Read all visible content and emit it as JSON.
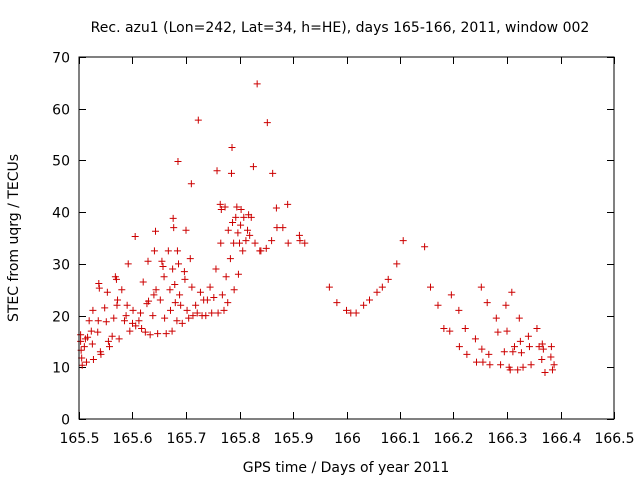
{
  "chart_data": {
    "type": "scatter",
    "title": "Rec. azu1 (Lon=242, Lat=34, h=HE), days 165-166, 2011, window 002",
    "xlabel": "GPS time / Days of year 2011",
    "ylabel": "STEC from uqrg / TECUs",
    "xlim": [
      165.5,
      166.5
    ],
    "ylim": [
      0,
      70
    ],
    "x_ticks": [
      165.5,
      165.6,
      165.7,
      165.8,
      165.9,
      166,
      166.1,
      166.2,
      166.3,
      166.4,
      166.5
    ],
    "x_tick_labels": [
      "165.5",
      "165.6",
      "165.7",
      "165.8",
      "165.9",
      "166",
      "166.1",
      "166.2",
      "166.3",
      "166.4",
      "166.5"
    ],
    "y_ticks": [
      0,
      10,
      20,
      30,
      40,
      50,
      60,
      70
    ],
    "y_tick_labels": [
      "0",
      "10",
      "20",
      "30",
      "40",
      "50",
      "60",
      "70"
    ],
    "grid": false,
    "marker": "+",
    "color": "#cc0000",
    "points": [
      [
        165.503,
        15.0
      ],
      [
        165.503,
        16.3
      ],
      [
        165.504,
        13.3
      ],
      [
        165.505,
        11.8
      ],
      [
        165.506,
        10.4
      ],
      [
        165.51,
        14.0
      ],
      [
        165.512,
        15.5
      ],
      [
        165.514,
        11.0
      ],
      [
        165.516,
        15.8
      ],
      [
        165.519,
        19.0
      ],
      [
        165.523,
        17.0
      ],
      [
        165.525,
        14.5
      ],
      [
        165.526,
        21.0
      ],
      [
        165.527,
        11.5
      ],
      [
        165.535,
        16.8
      ],
      [
        165.536,
        19.0
      ],
      [
        165.537,
        26.2
      ],
      [
        165.538,
        25.3
      ],
      [
        165.54,
        13.0
      ],
      [
        165.541,
        12.5
      ],
      [
        165.548,
        21.5
      ],
      [
        165.551,
        18.8
      ],
      [
        165.553,
        24.5
      ],
      [
        165.555,
        15.0
      ],
      [
        165.557,
        14.0
      ],
      [
        165.562,
        16.0
      ],
      [
        165.565,
        19.5
      ],
      [
        165.568,
        27.5
      ],
      [
        165.57,
        27.0
      ],
      [
        165.571,
        22.0
      ],
      [
        165.572,
        23.0
      ],
      [
        165.575,
        15.5
      ],
      [
        165.58,
        25.0
      ],
      [
        165.585,
        19.0
      ],
      [
        165.588,
        20.0
      ],
      [
        165.59,
        22.0
      ],
      [
        165.592,
        30.0
      ],
      [
        165.595,
        17.0
      ],
      [
        165.6,
        18.5
      ],
      [
        165.601,
        21.0
      ],
      [
        165.605,
        35.3
      ],
      [
        165.606,
        18.0
      ],
      [
        165.612,
        19.0
      ],
      [
        165.615,
        20.5
      ],
      [
        165.617,
        17.5
      ],
      [
        165.62,
        26.5
      ],
      [
        165.624,
        16.8
      ],
      [
        165.627,
        22.3
      ],
      [
        165.629,
        30.5
      ],
      [
        165.63,
        22.8
      ],
      [
        165.633,
        16.3
      ],
      [
        165.638,
        20.0
      ],
      [
        165.64,
        24.0
      ],
      [
        165.641,
        32.5
      ],
      [
        165.643,
        36.3
      ],
      [
        165.644,
        25.0
      ],
      [
        165.647,
        16.5
      ],
      [
        165.652,
        23.0
      ],
      [
        165.655,
        30.5
      ],
      [
        165.657,
        29.5
      ],
      [
        165.659,
        27.5
      ],
      [
        165.66,
        19.5
      ],
      [
        165.663,
        16.5
      ],
      [
        165.667,
        32.5
      ],
      [
        165.67,
        25.0
      ],
      [
        165.671,
        21.0
      ],
      [
        165.674,
        17.0
      ],
      [
        165.675,
        29.0
      ],
      [
        165.676,
        38.8
      ],
      [
        165.677,
        37.0
      ],
      [
        165.679,
        26.0
      ],
      [
        165.68,
        22.5
      ],
      [
        165.683,
        19.0
      ],
      [
        165.684,
        32.5
      ],
      [
        165.685,
        49.8
      ],
      [
        165.686,
        30.0
      ],
      [
        165.688,
        24.0
      ],
      [
        165.69,
        22.0
      ],
      [
        165.693,
        18.5
      ],
      [
        165.697,
        28.5
      ],
      [
        165.698,
        27.0
      ],
      [
        165.7,
        36.5
      ],
      [
        165.702,
        21.0
      ],
      [
        165.705,
        19.5
      ],
      [
        165.708,
        31.0
      ],
      [
        165.71,
        45.5
      ],
      [
        165.711,
        25.5
      ],
      [
        165.713,
        20.0
      ],
      [
        165.718,
        22.0
      ],
      [
        165.721,
        20.5
      ],
      [
        165.723,
        57.8
      ],
      [
        165.727,
        24.5
      ],
      [
        165.73,
        20.0
      ],
      [
        165.733,
        23.0
      ],
      [
        165.737,
        20.0
      ],
      [
        165.74,
        23.0
      ],
      [
        165.745,
        25.5
      ],
      [
        165.748,
        20.5
      ],
      [
        165.752,
        23.5
      ],
      [
        165.756,
        29.0
      ],
      [
        165.758,
        48.0
      ],
      [
        165.76,
        20.5
      ],
      [
        165.764,
        41.5
      ],
      [
        165.765,
        34.0
      ],
      [
        165.766,
        40.5
      ],
      [
        165.768,
        24.0
      ],
      [
        165.771,
        21.0
      ],
      [
        165.773,
        41.0
      ],
      [
        165.775,
        27.5
      ],
      [
        165.778,
        22.5
      ],
      [
        165.779,
        36.5
      ],
      [
        165.783,
        31.0
      ],
      [
        165.785,
        47.5
      ],
      [
        165.786,
        52.5
      ],
      [
        165.787,
        38.0
      ],
      [
        165.789,
        34.0
      ],
      [
        165.79,
        25.0
      ],
      [
        165.793,
        39.0
      ],
      [
        165.795,
        41.0
      ],
      [
        165.797,
        36.0
      ],
      [
        165.798,
        28.0
      ],
      [
        165.8,
        34.0
      ],
      [
        165.802,
        37.5
      ],
      [
        165.803,
        40.5
      ],
      [
        165.806,
        32.5
      ],
      [
        165.808,
        39.0
      ],
      [
        165.812,
        34.5
      ],
      [
        165.815,
        36.5
      ],
      [
        165.817,
        39.5
      ],
      [
        165.819,
        35.5
      ],
      [
        165.822,
        39.0
      ],
      [
        165.826,
        48.8
      ],
      [
        165.829,
        34.0
      ],
      [
        165.833,
        64.8
      ],
      [
        165.838,
        32.5
      ],
      [
        165.84,
        32.5
      ],
      [
        165.85,
        33.0
      ],
      [
        165.852,
        57.3
      ],
      [
        165.86,
        34.5
      ],
      [
        165.862,
        47.5
      ],
      [
        165.869,
        40.8
      ],
      [
        165.87,
        37.0
      ],
      [
        165.881,
        37.0
      ],
      [
        165.89,
        41.5
      ],
      [
        165.891,
        34.0
      ],
      [
        165.912,
        35.5
      ],
      [
        165.913,
        34.5
      ],
      [
        165.922,
        34.0
      ],
      [
        165.968,
        25.5
      ],
      [
        165.982,
        22.5
      ],
      [
        166.0,
        21.0
      ],
      [
        166.008,
        20.5
      ],
      [
        166.018,
        20.5
      ],
      [
        166.032,
        22.0
      ],
      [
        166.043,
        23.0
      ],
      [
        166.057,
        24.5
      ],
      [
        166.067,
        25.5
      ],
      [
        166.078,
        27.0
      ],
      [
        166.094,
        30.0
      ],
      [
        166.106,
        34.5
      ],
      [
        166.146,
        33.3
      ],
      [
        166.157,
        25.5
      ],
      [
        166.171,
        22.0
      ],
      [
        166.182,
        17.5
      ],
      [
        166.193,
        17.0
      ],
      [
        166.196,
        24.0
      ],
      [
        166.21,
        21.0
      ],
      [
        166.211,
        14.0
      ],
      [
        166.222,
        17.5
      ],
      [
        166.225,
        12.5
      ],
      [
        166.241,
        15.5
      ],
      [
        166.243,
        11.0
      ],
      [
        166.252,
        25.5
      ],
      [
        166.253,
        13.5
      ],
      [
        166.255,
        11.0
      ],
      [
        166.263,
        22.5
      ],
      [
        166.266,
        12.5
      ],
      [
        166.268,
        10.5
      ],
      [
        166.28,
        19.5
      ],
      [
        166.283,
        16.8
      ],
      [
        166.288,
        10.5
      ],
      [
        166.295,
        13.0
      ],
      [
        166.298,
        22.0
      ],
      [
        166.3,
        17.0
      ],
      [
        166.304,
        10.0
      ],
      [
        166.306,
        9.5
      ],
      [
        166.309,
        24.5
      ],
      [
        166.311,
        13.0
      ],
      [
        166.314,
        14.0
      ],
      [
        166.32,
        9.5
      ],
      [
        166.323,
        19.5
      ],
      [
        166.325,
        15.0
      ],
      [
        166.327,
        12.8
      ],
      [
        166.33,
        10.0
      ],
      [
        166.34,
        16.0
      ],
      [
        166.342,
        14.0
      ],
      [
        166.345,
        10.5
      ],
      [
        166.356,
        17.5
      ],
      [
        166.36,
        14.0
      ],
      [
        166.365,
        11.5
      ],
      [
        166.366,
        14.5
      ],
      [
        166.368,
        13.5
      ],
      [
        166.371,
        9.0
      ],
      [
        166.382,
        12.0
      ],
      [
        166.383,
        14.0
      ],
      [
        166.385,
        9.5
      ],
      [
        166.388,
        10.5
      ]
    ]
  }
}
